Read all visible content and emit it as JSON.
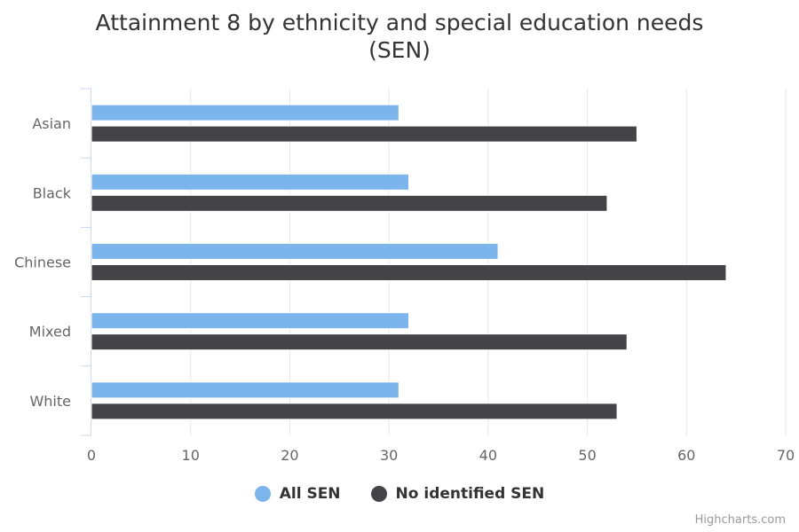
{
  "chart_data": {
    "type": "bar",
    "orientation": "horizontal",
    "title_lines": [
      "Attainment 8 by ethnicity and special education needs",
      "(SEN)"
    ],
    "categories": [
      "Asian",
      "Black",
      "Chinese",
      "Mixed",
      "White"
    ],
    "series": [
      {
        "name": "All SEN",
        "color": "#7cb5ec",
        "values": [
          31,
          32,
          41,
          32,
          31
        ]
      },
      {
        "name": "No identified SEN",
        "color": "#434348",
        "values": [
          55,
          52,
          64,
          54,
          53
        ]
      }
    ],
    "xlim": [
      0,
      70
    ],
    "ticks": [
      0,
      10,
      20,
      30,
      40,
      50,
      60,
      70
    ],
    "grid": true,
    "legend_position": "bottom-center"
  },
  "credits": "Highcharts.com"
}
